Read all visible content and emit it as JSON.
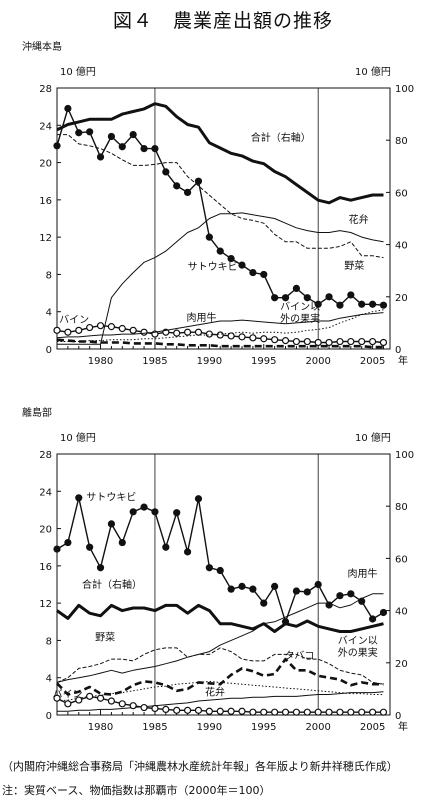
{
  "figure": {
    "title": "図４　農業産出額の推移",
    "source": "（内閣府沖縄総合事務局「沖縄農林水産統計年報」各年版より新井祥穂氏作成）",
    "note": "注：実質ベース、物価指数は那覇市（2000年＝100）"
  },
  "chart_data": [
    {
      "type": "line",
      "panel_label": "沖縄本島",
      "left_axis_unit": "10 億円",
      "right_axis_unit": "10 億円",
      "year_suffix": "年",
      "x_ticks": [
        1980,
        1985,
        1990,
        1995,
        2000,
        2005
      ],
      "y_left_ticks": [
        0,
        4,
        8,
        12,
        16,
        20,
        24,
        28
      ],
      "y_right_ticks": [
        0,
        20,
        40,
        60,
        80,
        100
      ],
      "xlim": [
        1976,
        2006.6
      ],
      "ylim_left": [
        0,
        28
      ],
      "ylim_right": [
        0,
        100
      ],
      "ref_lines": [
        1985,
        2000
      ],
      "x": [
        1976,
        1977,
        1978,
        1979,
        1980,
        1981,
        1982,
        1983,
        1984,
        1985,
        1986,
        1987,
        1988,
        1989,
        1990,
        1991,
        1992,
        1993,
        1994,
        1995,
        1996,
        1997,
        1998,
        1999,
        2000,
        2001,
        2002,
        2003,
        2004,
        2005,
        2006
      ],
      "series": [
        {
          "name": "合計（右軸）",
          "axis": "right",
          "style": "thick",
          "label_pos": [
            1993.8,
            22.3
          ],
          "values": [
            84,
            86,
            87,
            88,
            88,
            88,
            90,
            91,
            92,
            94,
            93,
            89,
            86,
            85,
            79,
            77,
            75,
            74,
            72,
            71,
            68,
            66,
            63,
            60,
            57,
            56,
            58,
            57,
            58,
            59,
            59
          ]
        },
        {
          "name": "サトウキビ",
          "axis": "left",
          "style": "dots",
          "label_pos": [
            1988,
            8.5
          ],
          "values": [
            21.8,
            25.8,
            23.2,
            23.3,
            20.6,
            22.8,
            21.7,
            23,
            21.5,
            21.5,
            19,
            17.5,
            16.8,
            18,
            12,
            10.5,
            9.7,
            9,
            8.2,
            8,
            5.5,
            5.5,
            6.5,
            5.5,
            4.8,
            5.6,
            4.7,
            5.8,
            4.8,
            4.8,
            4.7
          ]
        },
        {
          "name": "野菜",
          "axis": "left",
          "style": "dashed",
          "label_pos": [
            2002.4,
            8.6
          ],
          "values": [
            23,
            23,
            22,
            21.8,
            21.5,
            21,
            20.3,
            19.7,
            19.7,
            19.8,
            20,
            20,
            18.5,
            17.5,
            16.5,
            15.5,
            14.5,
            14,
            13.8,
            13.5,
            12.3,
            11.5,
            11.5,
            10.8,
            10.8,
            10.8,
            11,
            11.5,
            10,
            10,
            9.8
          ]
        },
        {
          "name": "花弁",
          "axis": "left",
          "style": "thin",
          "label_pos": [
            2002.8,
            13.5
          ],
          "values": [
            0.5,
            0.5,
            0.5,
            0.5,
            0.5,
            5.5,
            7,
            8.2,
            9.3,
            9.8,
            10.5,
            11.5,
            12.5,
            13,
            14,
            14.5,
            14.5,
            14.6,
            14.4,
            14.2,
            14,
            13.5,
            13,
            12.7,
            12.5,
            12.5,
            12.7,
            12.5,
            12,
            11.7,
            11.5
          ]
        },
        {
          "name": "バイン",
          "axis": "left",
          "style": "circles",
          "label_pos": [
            1976.2,
            2.8
          ],
          "values": [
            2,
            1.8,
            2,
            2.3,
            2.5,
            2.4,
            2.2,
            2,
            1.8,
            1.6,
            1.8,
            1.7,
            1.8,
            1.8,
            1.6,
            1.5,
            1.4,
            1.3,
            1.2,
            1.1,
            1,
            0.9,
            0.8,
            0.8,
            0.7,
            0.7,
            0.8,
            0.8,
            0.8,
            0.8,
            0.7
          ]
        },
        {
          "name": "肉用牛",
          "axis": "left",
          "style": "thin",
          "label_pos": [
            1987.9,
            3.0
          ],
          "values": [
            1.2,
            1.3,
            1.3,
            1.4,
            1.5,
            1.5,
            1.6,
            1.6,
            1.7,
            1.8,
            2,
            2.2,
            2.4,
            2.6,
            2.8,
            3,
            3,
            3.1,
            3,
            2.9,
            2.8,
            2.7,
            2.8,
            2.9,
            3,
            3,
            3.3,
            3.5,
            3.7,
            3.8,
            3.9
          ]
        },
        {
          "name": "バイン以外の果実",
          "axis": "left",
          "style": "dotted",
          "label_lines": [
            "バイン以",
            "外の果実"
          ],
          "label_pos": [
            1996.5,
            4.2
          ],
          "values": [
            0.8,
            0.8,
            0.8,
            0.9,
            0.9,
            1,
            1,
            1,
            1.1,
            1.1,
            1.2,
            1.3,
            1.4,
            1.5,
            1.5,
            1.6,
            1.7,
            1.8,
            1.7,
            1.8,
            1.8,
            1.7,
            1.8,
            2,
            2.1,
            2.3,
            2.8,
            3.2,
            3.7,
            4,
            4.2
          ]
        },
        {
          "name": "",
          "axis": "left",
          "style": "thickdash",
          "label_pos": null,
          "values": [
            1,
            0.9,
            0.8,
            0.8,
            0.7,
            0.7,
            0.7,
            0.6,
            0.6,
            0.6,
            0.5,
            0.5,
            0.4,
            0.4,
            0.4,
            0.3,
            0.3,
            0.3,
            0.3,
            0.3,
            0.3,
            0.3,
            0.3,
            0.3,
            0.3,
            0.3,
            0.3,
            0.3,
            0.3,
            0.2,
            0.2
          ]
        }
      ]
    },
    {
      "type": "line",
      "panel_label": "離島部",
      "left_axis_unit": "10 億円",
      "right_axis_unit": "10 億円",
      "year_suffix": "年",
      "x_ticks": [
        1980,
        1985,
        1990,
        1995,
        2000,
        2005
      ],
      "y_left_ticks": [
        0,
        4,
        8,
        12,
        16,
        20,
        24,
        28
      ],
      "y_right_ticks": [
        0,
        20,
        40,
        60,
        80,
        100
      ],
      "xlim": [
        1976,
        2006.6
      ],
      "ylim_left": [
        0,
        28
      ],
      "ylim_right": [
        0,
        100
      ],
      "ref_lines": [
        1985,
        2000
      ],
      "x": [
        1976,
        1977,
        1978,
        1979,
        1980,
        1981,
        1982,
        1983,
        1984,
        1985,
        1986,
        1987,
        1988,
        1989,
        1990,
        1991,
        1992,
        1993,
        1994,
        1995,
        1996,
        1997,
        1998,
        1999,
        2000,
        2001,
        2002,
        2003,
        2004,
        2005,
        2006
      ],
      "series": [
        {
          "name": "サトウキビ",
          "axis": "left",
          "style": "dots",
          "label_pos": [
            1978.7,
            23.0
          ],
          "values": [
            17.8,
            18.5,
            23.3,
            18,
            15.8,
            20.5,
            18.5,
            21.8,
            22.3,
            21.8,
            18,
            21.7,
            17.5,
            23.2,
            15.8,
            15.5,
            13.5,
            13.8,
            13.5,
            12,
            13.8,
            10,
            13.3,
            13.2,
            14,
            11.8,
            12.8,
            13,
            12.2,
            10.3,
            11
          ]
        },
        {
          "name": "合計（右軸）",
          "axis": "right",
          "style": "thick",
          "label_pos": [
            1978.3,
            13.6
          ],
          "values": [
            40,
            37,
            42,
            39,
            38,
            42,
            40,
            41,
            41,
            40,
            42,
            42,
            39,
            42,
            40,
            35,
            35,
            34,
            33,
            35,
            32,
            35,
            34,
            36,
            34,
            33,
            32,
            32,
            33,
            34,
            35
          ]
        },
        {
          "name": "肉用牛",
          "axis": "left",
          "style": "thin",
          "label_pos": [
            2002.7,
            14.8
          ],
          "values": [
            3.5,
            3.8,
            4,
            4.2,
            4.5,
            4.8,
            4.5,
            4.8,
            5,
            5.2,
            5.5,
            5.8,
            6.2,
            6.5,
            6.8,
            7.5,
            8,
            8.5,
            9,
            9.8,
            10,
            10.5,
            11,
            11.5,
            12,
            12,
            11.5,
            11.8,
            12.5,
            13,
            13
          ]
        },
        {
          "name": "野菜",
          "axis": "left",
          "style": "dashed",
          "label_pos": [
            1979.5,
            8.0
          ],
          "values": [
            3.5,
            4,
            5,
            5.2,
            5.5,
            6,
            6,
            5.8,
            6.5,
            7,
            7.2,
            7.2,
            6.2,
            6.5,
            6.5,
            7.2,
            6.8,
            6,
            5.8,
            5.8,
            6.5,
            6.5,
            6.5,
            6,
            6,
            5.5,
            4.8,
            4.5,
            4.3,
            3.5,
            3.3
          ]
        },
        {
          "name": "タバコ",
          "axis": "left",
          "style": "thickdash",
          "label_pos": [
            1996.9,
            6.0
          ],
          "values": [
            3.4,
            2.2,
            2.5,
            3,
            2.3,
            2.2,
            2.5,
            3.2,
            3.6,
            3.5,
            3.2,
            2.6,
            2.8,
            3.5,
            3.4,
            3.3,
            4.3,
            5,
            4.7,
            4.2,
            4.4,
            6,
            4.8,
            4.8,
            4.2,
            4,
            3.8,
            3.2,
            3.5,
            3.3,
            3.3
          ]
        },
        {
          "name": "バイン以外の果実",
          "axis": "left",
          "style": "dotted",
          "label_lines": [
            "バイン以",
            "外の果実"
          ],
          "label_pos": [
            2001.8,
            7.6
          ],
          "values": [
            1.5,
            1.6,
            1.8,
            2,
            2.1,
            2.3,
            2.4,
            2.6,
            2.8,
            3,
            3.1,
            3.3,
            3.4,
            3.5,
            3.6,
            3.5,
            3.4,
            3.3,
            3.2,
            3.1,
            3,
            2.9,
            2.8,
            2.7,
            2.6,
            2.5,
            2.4,
            2.3,
            2.3,
            2.2,
            2.2
          ]
        },
        {
          "name": "花弁",
          "axis": "left",
          "style": "thin",
          "label_pos": [
            1989.6,
            2.1
          ],
          "values": [
            0.4,
            0.4,
            0.5,
            0.5,
            0.6,
            0.6,
            0.7,
            0.8,
            0.9,
            1,
            1.1,
            1.2,
            1.3,
            1.5,
            1.6,
            1.7,
            1.8,
            1.8,
            1.9,
            1.9,
            2,
            2,
            2,
            2.1,
            2.2,
            2.2,
            2.3,
            2.4,
            2.4,
            2.4,
            2.5
          ]
        },
        {
          "name": "バイン",
          "axis": "left",
          "style": "circles",
          "label_pos": [
            1975.6,
            1.9
          ],
          "values": [
            1.8,
            1.2,
            1.6,
            2,
            1.8,
            1.5,
            1.2,
            1,
            0.8,
            0.7,
            0.6,
            0.5,
            0.5,
            0.5,
            0.4,
            0.4,
            0.4,
            0.4,
            0.3,
            0.3,
            0.3,
            0.3,
            0.3,
            0.3,
            0.3,
            0.3,
            0.3,
            0.3,
            0.3,
            0.3,
            0.3
          ]
        }
      ]
    }
  ]
}
